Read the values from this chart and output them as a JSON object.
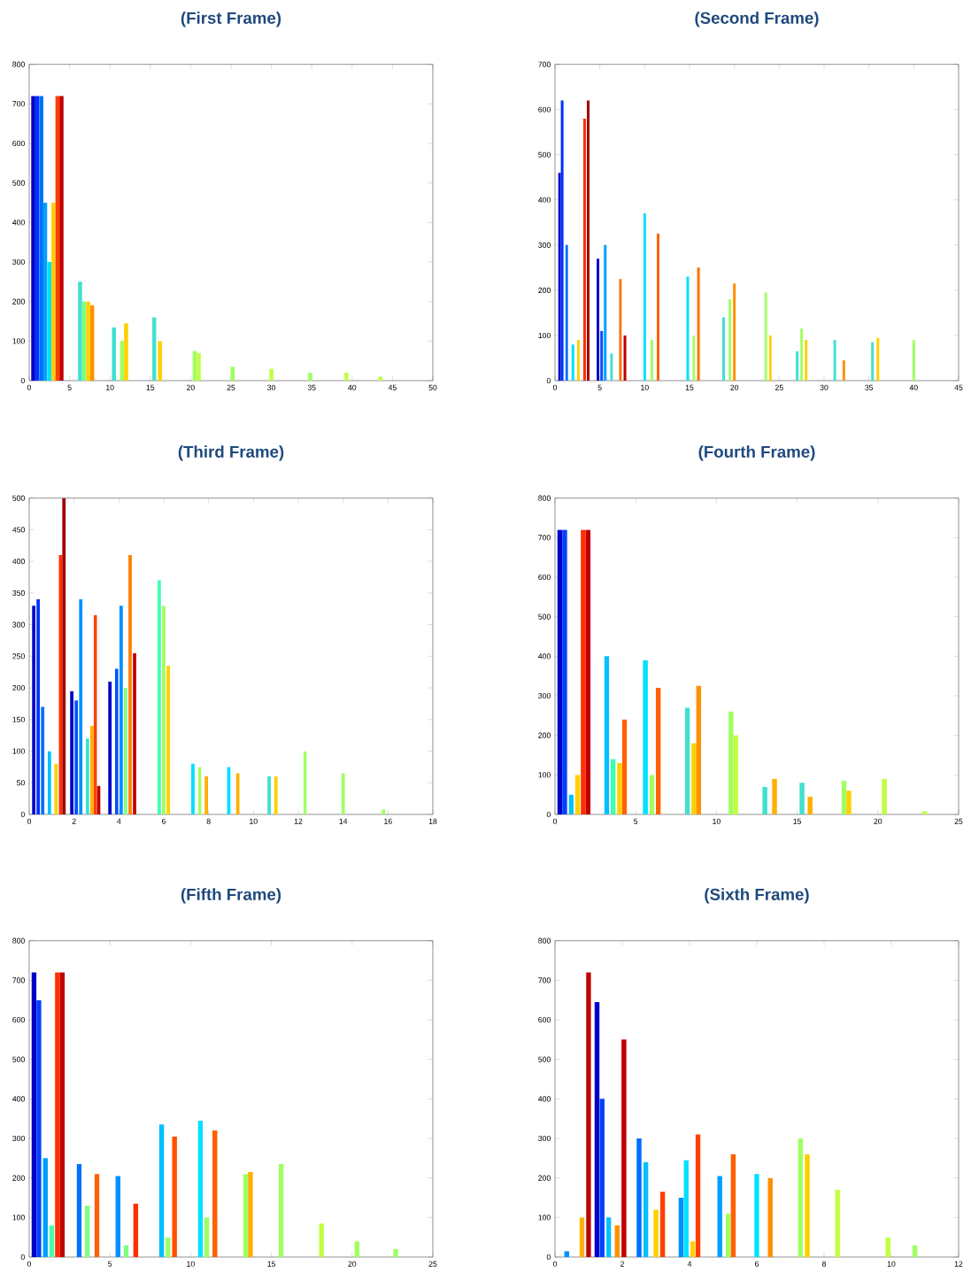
{
  "chart_data": [
    {
      "type": "bar",
      "title": "(First Frame)",
      "xlim": [
        0,
        50
      ],
      "ylim": [
        0,
        800
      ],
      "xticks": [
        0,
        5,
        10,
        15,
        20,
        25,
        30,
        35,
        40,
        45,
        50
      ],
      "yticks": [
        0,
        100,
        200,
        300,
        400,
        500,
        600,
        700,
        800
      ],
      "x": [
        0.5,
        1.0,
        1.5,
        2.0,
        2.5,
        3.0,
        3.5,
        4.0,
        6.3,
        6.8,
        7.3,
        7.8,
        10.5,
        11.5,
        12.0,
        15.5,
        16.2,
        20.5,
        21.0,
        25.2,
        30.0,
        34.8,
        39.3,
        43.5
      ],
      "values": [
        720,
        720,
        720,
        450,
        300,
        450,
        720,
        720,
        250,
        200,
        200,
        190,
        135,
        100,
        145,
        160,
        100,
        75,
        70,
        35,
        30,
        20,
        20,
        10
      ],
      "colors": [
        "#0000c8",
        "#0030ff",
        "#0070ff",
        "#00a0ff",
        "#00e0ff",
        "#ffd000",
        "#ff4000",
        "#c00000",
        "#40e0d0",
        "#80ff80",
        "#ffd000",
        "#ff9000",
        "#40e0d0",
        "#a0ff60",
        "#ffd000",
        "#40e0d0",
        "#ffd000",
        "#a0ff60",
        "#c0ff40",
        "#a0ff60",
        "#c0ff40",
        "#a0ff60",
        "#c0ff40",
        "#c0ff40"
      ]
    },
    {
      "type": "bar",
      "title": "(Second Frame)",
      "xlim": [
        0,
        45
      ],
      "ylim": [
        0,
        700
      ],
      "xticks": [
        0,
        5,
        10,
        15,
        20,
        25,
        30,
        35,
        40,
        45
      ],
      "yticks": [
        0,
        100,
        200,
        300,
        400,
        500,
        600,
        700
      ],
      "x": [
        0.5,
        0.8,
        1.3,
        2.0,
        2.6,
        3.3,
        3.7,
        4.8,
        5.2,
        5.6,
        6.3,
        7.3,
        7.8,
        10.0,
        10.8,
        11.5,
        14.8,
        15.5,
        16.0,
        18.8,
        19.5,
        20.0,
        23.5,
        24.0,
        27.0,
        27.5,
        28.0,
        31.2,
        32.2,
        35.4,
        36.0,
        40.0
      ],
      "values": [
        460,
        620,
        300,
        80,
        90,
        580,
        620,
        270,
        110,
        300,
        60,
        225,
        100,
        370,
        90,
        325,
        230,
        100,
        250,
        140,
        180,
        215,
        195,
        100,
        65,
        115,
        90,
        90,
        45,
        85,
        95,
        90
      ],
      "colors": [
        "#0000c8",
        "#0030ff",
        "#0070ff",
        "#00e0ff",
        "#ffd000",
        "#ff3000",
        "#a00000",
        "#0000c8",
        "#0050ff",
        "#00a0ff",
        "#40e0d0",
        "#ff7000",
        "#c00000",
        "#00e0ff",
        "#a0ff60",
        "#ff6000",
        "#00e0ff",
        "#a0ff60",
        "#ff7000",
        "#40e0d0",
        "#a0ff60",
        "#ff9000",
        "#a0ff60",
        "#ffd000",
        "#40e0d0",
        "#a0ff60",
        "#ffd000",
        "#40e0d0",
        "#ff9000",
        "#40e0d0",
        "#ffd000",
        "#a0ff60"
      ]
    },
    {
      "type": "bar",
      "title": "(Third Frame)",
      "xlim": [
        0,
        18
      ],
      "ylim": [
        0,
        500
      ],
      "xticks": [
        0,
        2,
        4,
        6,
        8,
        10,
        12,
        14,
        16,
        18
      ],
      "yticks": [
        0,
        50,
        100,
        150,
        200,
        250,
        300,
        350,
        400,
        450,
        500
      ],
      "x": [
        0.2,
        0.4,
        0.6,
        0.9,
        1.2,
        1.4,
        1.55,
        1.9,
        2.1,
        2.3,
        2.6,
        2.8,
        2.95,
        3.1,
        3.6,
        3.9,
        4.1,
        4.3,
        4.5,
        4.7,
        5.8,
        6.0,
        6.2,
        7.3,
        7.6,
        7.9,
        8.9,
        9.3,
        10.7,
        11.0,
        12.3,
        14.0,
        15.8
      ],
      "values": [
        330,
        340,
        170,
        100,
        80,
        410,
        500,
        195,
        180,
        340,
        120,
        140,
        315,
        45,
        210,
        230,
        330,
        200,
        410,
        255,
        370,
        330,
        235,
        80,
        75,
        60,
        75,
        65,
        60,
        60,
        100,
        65,
        8
      ],
      "colors": [
        "#0000c8",
        "#0030ff",
        "#0070ff",
        "#00c0ff",
        "#ffd000",
        "#ff3000",
        "#a00000",
        "#0000c8",
        "#0050ff",
        "#0090ff",
        "#40e0d0",
        "#ffb000",
        "#ff4000",
        "#c00000",
        "#0000c8",
        "#0050ff",
        "#0090ff",
        "#80ff80",
        "#ff8000",
        "#c00000",
        "#40ffb0",
        "#a0ff60",
        "#ffd000",
        "#00e0ff",
        "#a0ff60",
        "#ffb000",
        "#00e0ff",
        "#ffb000",
        "#40e0d0",
        "#ffd000",
        "#a0ff60",
        "#a0ff60",
        "#a0ff60"
      ]
    },
    {
      "type": "bar",
      "title": "(Fourth Frame)",
      "xlim": [
        0,
        25
      ],
      "ylim": [
        0,
        800
      ],
      "xticks": [
        0,
        5,
        10,
        15,
        20,
        25
      ],
      "yticks": [
        0,
        100,
        200,
        300,
        400,
        500,
        600,
        700,
        800
      ],
      "x": [
        0.3,
        0.6,
        1.0,
        1.4,
        1.75,
        2.05,
        3.2,
        3.6,
        4.0,
        4.3,
        5.6,
        6.0,
        6.4,
        8.2,
        8.6,
        8.9,
        10.9,
        11.2,
        13.0,
        13.6,
        15.3,
        15.8,
        17.9,
        18.2,
        20.4,
        22.9
      ],
      "values": [
        720,
        720,
        50,
        100,
        720,
        720,
        400,
        140,
        130,
        240,
        390,
        100,
        320,
        270,
        180,
        325,
        260,
        200,
        70,
        90,
        80,
        45,
        85,
        60,
        90,
        8
      ],
      "colors": [
        "#0000c8",
        "#0040ff",
        "#00c0ff",
        "#ffd000",
        "#ff3000",
        "#c00000",
        "#00c0ff",
        "#40ffb0",
        "#ffd000",
        "#ff6000",
        "#00e0ff",
        "#a0ff60",
        "#ff6000",
        "#40e0d0",
        "#ffd000",
        "#ff9000",
        "#a0ff60",
        "#c0ff40",
        "#40e0d0",
        "#ffb000",
        "#40e0d0",
        "#ffb000",
        "#a0ff60",
        "#ffd000",
        "#c0ff40",
        "#c0ff40"
      ]
    },
    {
      "type": "bar",
      "title": "(Fifth Frame)",
      "xlim": [
        0,
        25
      ],
      "ylim": [
        0,
        800
      ],
      "xticks": [
        0,
        5,
        10,
        15,
        20,
        25
      ],
      "yticks": [
        0,
        100,
        200,
        300,
        400,
        500,
        600,
        700,
        800
      ],
      "x": [
        0.3,
        0.6,
        1.0,
        1.4,
        1.75,
        2.05,
        3.1,
        3.6,
        4.2,
        5.5,
        6.0,
        6.6,
        8.2,
        8.6,
        9.0,
        10.6,
        11.0,
        11.5,
        13.4,
        13.7,
        15.6,
        18.1,
        20.3,
        22.7
      ],
      "values": [
        720,
        650,
        250,
        80,
        720,
        720,
        235,
        130,
        210,
        205,
        30,
        135,
        335,
        50,
        305,
        345,
        100,
        320,
        210,
        215,
        235,
        85,
        40,
        20
      ],
      "colors": [
        "#0000c8",
        "#0040ff",
        "#00a0ff",
        "#40ffb0",
        "#ff3000",
        "#c00000",
        "#0070ff",
        "#80ff80",
        "#ff6000",
        "#0090ff",
        "#80ff80",
        "#ff3000",
        "#00c0ff",
        "#a0ff60",
        "#ff5000",
        "#00e0ff",
        "#a0ff60",
        "#ff6000",
        "#a0ff60",
        "#ffb000",
        "#a0ff60",
        "#c0ff40",
        "#a0ff60",
        "#a0ff60"
      ]
    },
    {
      "type": "bar",
      "title": "(Sixth Frame)",
      "xlim": [
        0,
        12
      ],
      "ylim": [
        0,
        800
      ],
      "xticks": [
        0,
        2,
        4,
        6,
        8,
        10,
        12
      ],
      "yticks": [
        0,
        100,
        200,
        300,
        400,
        500,
        600,
        700,
        800
      ],
      "x": [
        0.35,
        0.8,
        1.0,
        1.25,
        1.4,
        1.6,
        1.85,
        2.05,
        2.5,
        2.7,
        3.0,
        3.2,
        3.75,
        3.9,
        4.1,
        4.25,
        4.9,
        5.15,
        5.3,
        6.0,
        6.4,
        7.3,
        7.5,
        8.4,
        9.9,
        10.7
      ],
      "values": [
        15,
        100,
        720,
        645,
        400,
        100,
        80,
        550,
        300,
        240,
        120,
        165,
        150,
        245,
        40,
        310,
        205,
        110,
        260,
        210,
        200,
        300,
        260,
        170,
        50,
        30
      ],
      "colors": [
        "#0090ff",
        "#ffb000",
        "#c00000",
        "#0000c8",
        "#0040ff",
        "#00c0ff",
        "#ff9000",
        "#c00000",
        "#0070ff",
        "#00c0ff",
        "#ffd000",
        "#ff4000",
        "#0090ff",
        "#00e0ff",
        "#ffd000",
        "#ff4000",
        "#00a0ff",
        "#a0ff60",
        "#ff6000",
        "#00e0ff",
        "#ff9000",
        "#a0ff60",
        "#ffd000",
        "#c0ff40",
        "#c0ff40",
        "#a0ff60"
      ]
    }
  ]
}
